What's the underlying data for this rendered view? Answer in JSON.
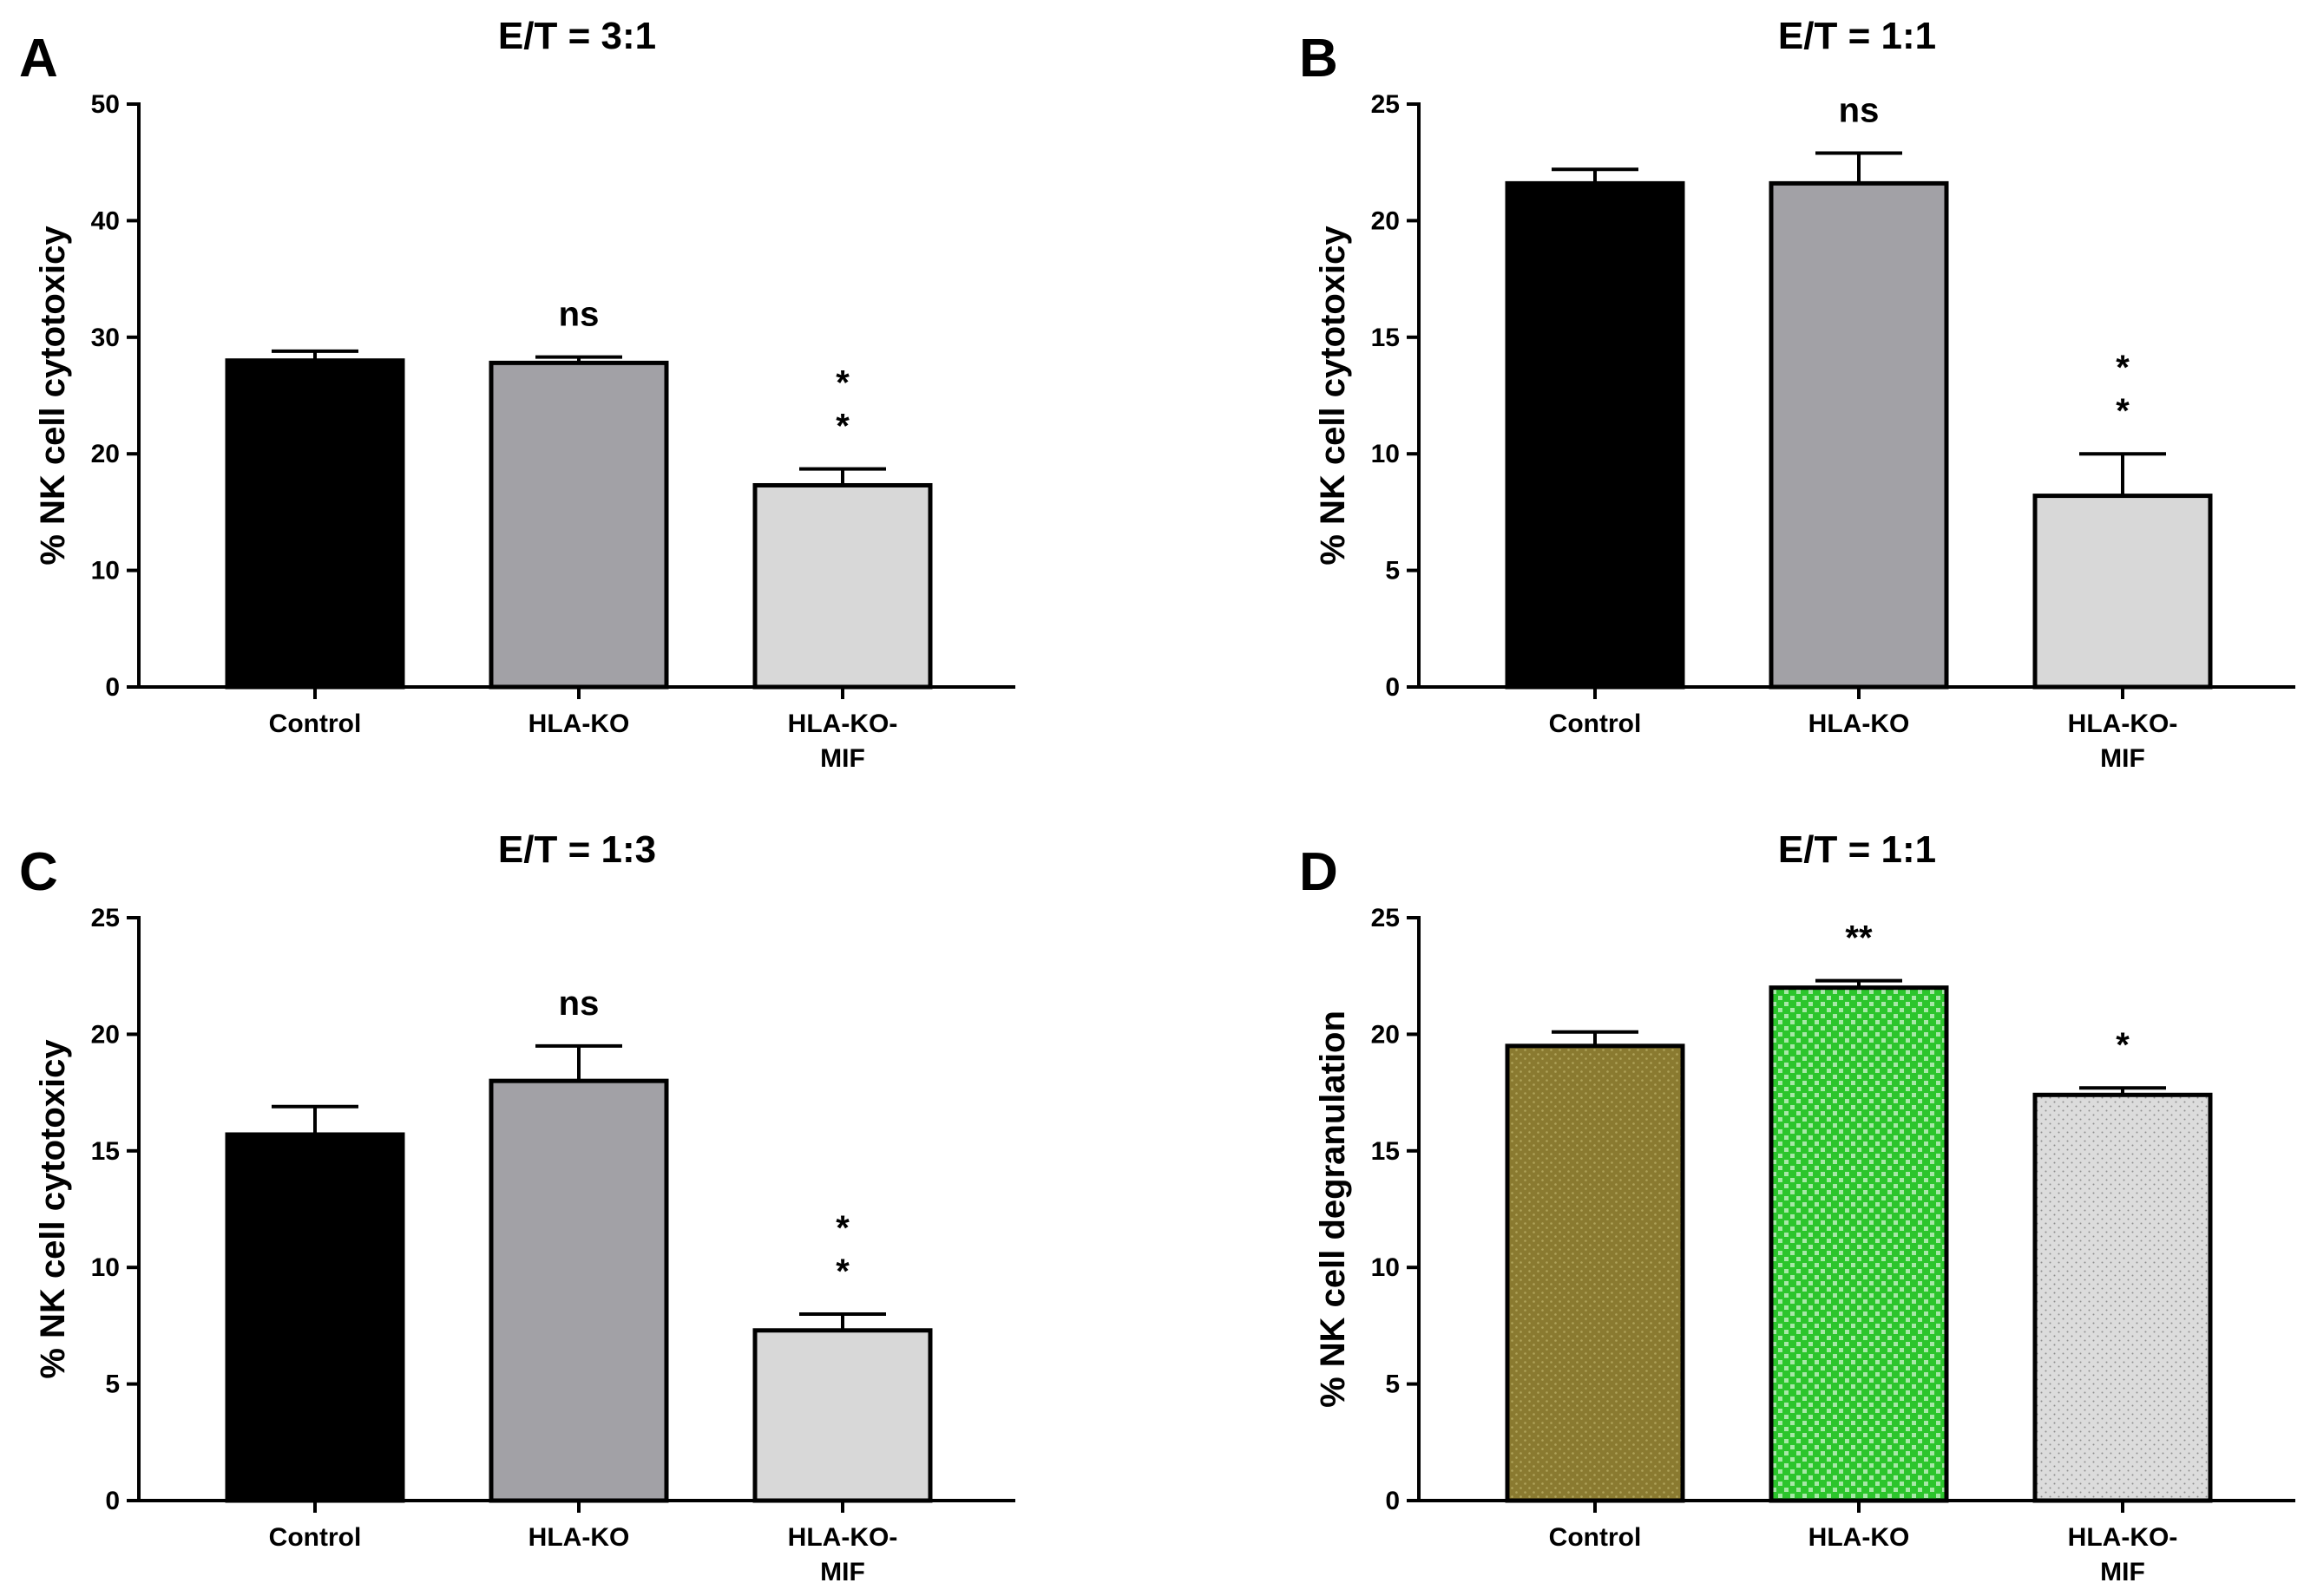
{
  "figure": {
    "type": "multi-panel bar chart",
    "panels": 4
  },
  "chart_data": [
    {
      "panel": "A",
      "type": "bar",
      "title": "E/T = 3:1",
      "xlabel": "",
      "ylabel": "% NK cell cytotoxicy",
      "ylim": [
        0,
        50
      ],
      "yticks": [
        0,
        10,
        20,
        30,
        40,
        50
      ],
      "categories": [
        "Control",
        "HLA-KO",
        "HLA-KO-\nMIF"
      ],
      "values": [
        28,
        27.8,
        17.3
      ],
      "errors": [
        0.8,
        0.5,
        1.4
      ],
      "colors": [
        "#000000",
        "#a2a1a6",
        "#d8d8d8"
      ],
      "patterns": [
        "none",
        "none",
        "none"
      ],
      "annotations": [
        "",
        "ns",
        "*\n*"
      ]
    },
    {
      "panel": "B",
      "type": "bar",
      "title": "E/T = 1:1",
      "xlabel": "",
      "ylabel": "% NK cell cytotoxicy",
      "ylim": [
        0,
        25
      ],
      "yticks": [
        0,
        5,
        10,
        15,
        20,
        25
      ],
      "categories": [
        "Control",
        "HLA-KO",
        "HLA-KO-\nMIF"
      ],
      "values": [
        21.6,
        21.6,
        8.2
      ],
      "errors": [
        0.6,
        1.3,
        1.8
      ],
      "colors": [
        "#000000",
        "#a2a1a6",
        "#d8d8d8"
      ],
      "patterns": [
        "none",
        "none",
        "none"
      ],
      "annotations": [
        "",
        "ns",
        "*\n*"
      ]
    },
    {
      "panel": "C",
      "type": "bar",
      "title": "E/T = 1:3",
      "xlabel": "",
      "ylabel": "% NK cell cytotoxicy",
      "ylim": [
        0,
        25
      ],
      "yticks": [
        0,
        5,
        10,
        15,
        20,
        25
      ],
      "categories": [
        "Control",
        "HLA-KO",
        "HLA-KO-\nMIF"
      ],
      "values": [
        15.7,
        18.0,
        7.3
      ],
      "errors": [
        1.2,
        1.5,
        0.7
      ],
      "colors": [
        "#000000",
        "#a2a1a6",
        "#d8d8d8"
      ],
      "patterns": [
        "none",
        "none",
        "none"
      ],
      "annotations": [
        "",
        "ns",
        "*\n*"
      ]
    },
    {
      "panel": "D",
      "type": "bar",
      "title": "E/T = 1:1",
      "xlabel": "",
      "ylabel": "% NK cell degranulation",
      "ylim": [
        0,
        25
      ],
      "yticks": [
        0,
        5,
        10,
        15,
        20,
        25
      ],
      "categories": [
        "Control",
        "HLA-KO",
        "HLA-KO-\nMIF"
      ],
      "values": [
        19.5,
        22.0,
        17.4
      ],
      "errors": [
        0.6,
        0.3,
        0.3
      ],
      "colors": [
        "#8a7a30",
        "#2cc52c",
        "#d9d9d9"
      ],
      "patterns": [
        "dots-olive",
        "checker-green",
        "dots-grey"
      ],
      "annotations": [
        "",
        "**",
        "*"
      ]
    }
  ]
}
